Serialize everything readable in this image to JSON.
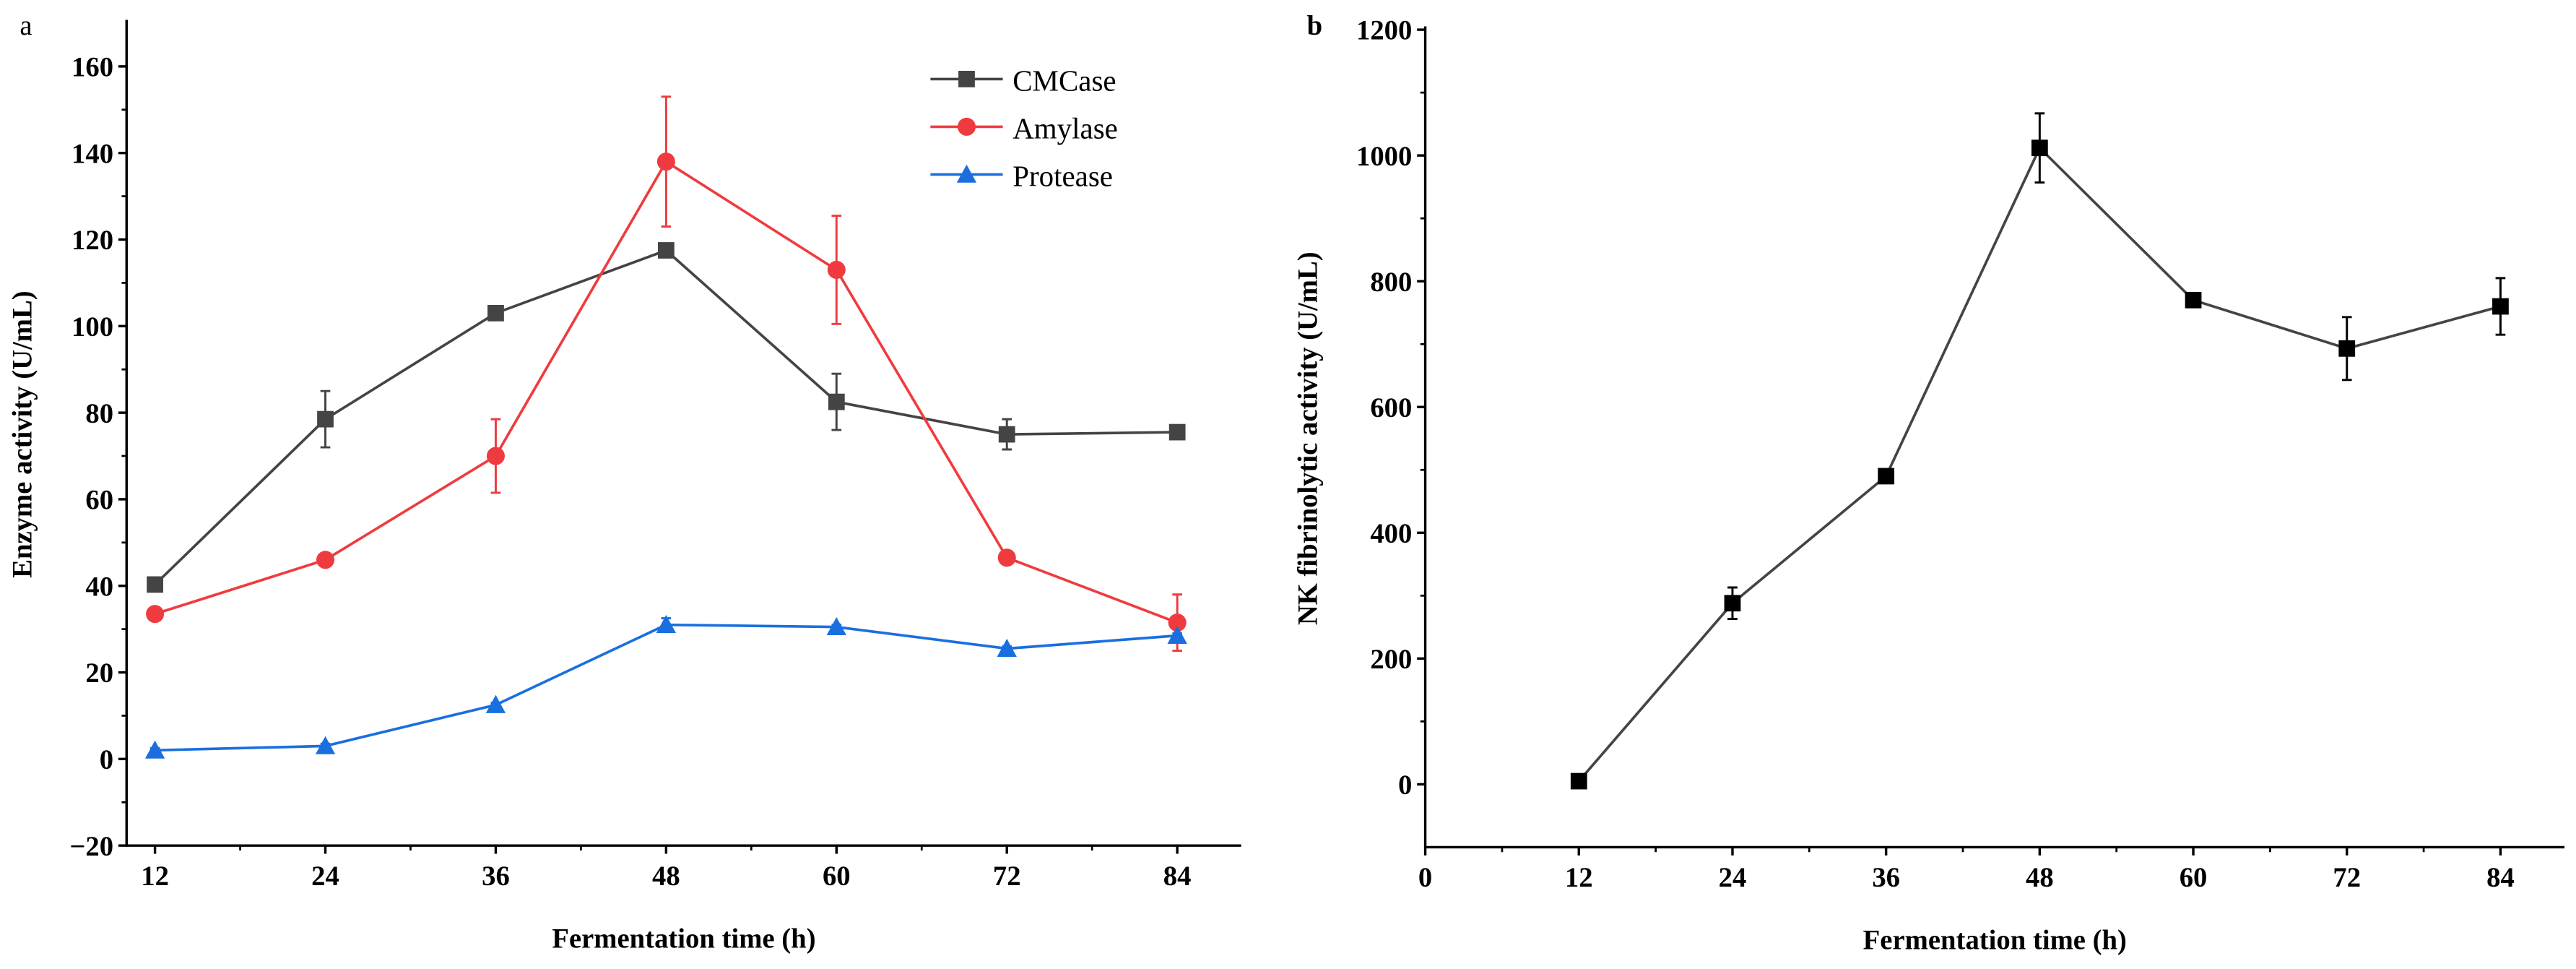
{
  "chart_data": [
    {
      "panel": "a",
      "type": "line",
      "xlabel": "Fermentation time (h)",
      "ylabel": "Enzyme activity (U/mL)",
      "x": [
        12,
        24,
        36,
        48,
        60,
        72,
        84
      ],
      "xlim": [
        10,
        88.5
      ],
      "ylim": [
        -20,
        170
      ],
      "xticks": [
        12,
        24,
        36,
        48,
        60,
        72,
        84
      ],
      "yticks": [
        -20,
        0,
        20,
        40,
        60,
        80,
        100,
        120,
        140,
        160
      ],
      "legend": "top-right",
      "grid": false,
      "series": [
        {
          "name": "CMCase",
          "color": "#444444",
          "marker": "square",
          "values": [
            40.3,
            78.5,
            103,
            117.5,
            82.5,
            75,
            75.5
          ],
          "errors": [
            1.5,
            6.5,
            1,
            1,
            6.5,
            3.5,
            0.5
          ]
        },
        {
          "name": "Amylase",
          "color": "#ef3b3f",
          "marker": "circle",
          "values": [
            33.5,
            46,
            70,
            138,
            113,
            46.5,
            31.5
          ],
          "errors": [
            1,
            0.5,
            8.5,
            15,
            12.5,
            0.5,
            6.5
          ]
        },
        {
          "name": "Protease",
          "color": "#1a6fdf",
          "marker": "triangle",
          "values": [
            2,
            3,
            12.5,
            31,
            30.5,
            25.5,
            28.5
          ],
          "errors": [
            0.5,
            0.5,
            0.5,
            1.5,
            0.5,
            0.5,
            0.5
          ]
        }
      ]
    },
    {
      "panel": "b",
      "type": "line",
      "xlabel": "Fermentation time (h)",
      "ylabel": "NK fibrinolytic activity (U/mL)",
      "x": [
        12,
        24,
        36,
        48,
        60,
        72,
        84
      ],
      "xlim": [
        0,
        89
      ],
      "ylim": [
        -100,
        1200
      ],
      "xticks": [
        0,
        12,
        24,
        36,
        48,
        60,
        72,
        84
      ],
      "yticks": [
        0,
        200,
        400,
        600,
        800,
        1000,
        1200
      ],
      "legend": "none",
      "grid": false,
      "series": [
        {
          "name": "NK fibrinolytic activity",
          "color": "#000000",
          "marker": "square",
          "values": [
            5,
            288,
            490,
            1012,
            770,
            693,
            760
          ],
          "errors": [
            3,
            25,
            5,
            55,
            10,
            50,
            45
          ]
        }
      ]
    }
  ]
}
